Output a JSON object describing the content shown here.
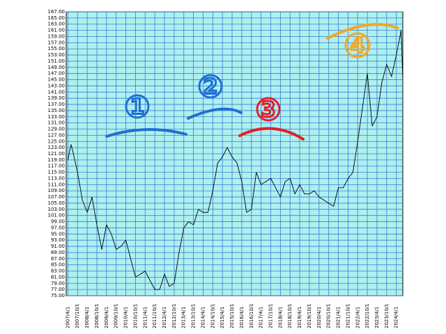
{
  "chart_data": {
    "type": "line",
    "x": [
      "2007/4/1",
      "2007/6/1",
      "2007/7/1",
      "2007/10/1",
      "2008/1/1",
      "2008/4/1",
      "2008/7/1",
      "2008/10/1",
      "2009/1/1",
      "2009/4/1",
      "2009/7/1",
      "2009/10/1",
      "2010/1/1",
      "2010/4/1",
      "2010/7/1",
      "2010/10/1",
      "2011/1/1",
      "2011/4/1",
      "2011/7/1",
      "2011/10/1",
      "2012/1/1",
      "2012/4/1",
      "2012/7/1",
      "2012/10/1",
      "2013/1/1",
      "2013/4/1",
      "2013/7/1",
      "2013/10/1",
      "2014/1/1",
      "2014/4/1",
      "2014/7/1",
      "2014/10/1",
      "2015/1/1",
      "2015/4/1",
      "2015/7/1",
      "2015/10/1",
      "2016/1/1",
      "2016/4/1",
      "2016/7/1",
      "2016/10/1",
      "2017/1/1",
      "2017/4/1",
      "2017/7/1",
      "2017/10/1",
      "2018/1/1",
      "2018/4/1",
      "2018/7/1",
      "2018/10/1",
      "2019/1/1",
      "2019/4/1",
      "2019/7/1",
      "2019/10/1",
      "2020/1/1",
      "2020/4/1",
      "2020/7/1",
      "2020/10/1",
      "2021/1/1",
      "2021/4/1",
      "2021/7/1",
      "2021/10/1",
      "2022/1/1",
      "2022/4/1",
      "2022/7/1",
      "2022/10/1",
      "2023/1/1",
      "2023/4/1",
      "2023/7/1",
      "2023/10/1",
      "2024/1/1",
      "2024/4/1",
      "2024/7/1",
      "2024/8/1"
    ],
    "series": [
      {
        "color": "#000000",
        "values": [
          119,
          124,
          122,
          115,
          106,
          102,
          107,
          98,
          90,
          98,
          95,
          90,
          91,
          93,
          87,
          81,
          82,
          83,
          80,
          77,
          77,
          82,
          78,
          79,
          89,
          97,
          99,
          98,
          103,
          102,
          102,
          109,
          118,
          120,
          123,
          120,
          118,
          112,
          102,
          103,
          115,
          111,
          112,
          113,
          110,
          107,
          112,
          113,
          108,
          111,
          108,
          108,
          109,
          107,
          106,
          105,
          104,
          110,
          110,
          113,
          115,
          125,
          136,
          147,
          130,
          133,
          144,
          150,
          146,
          153,
          161,
          145
        ]
      }
    ],
    "xlim": [
      "2007/3/1",
      "2024/8/1"
    ],
    "xticks": [
      "2007/4/1",
      "2007/10/1",
      "2008/4/1",
      "2008/10/1",
      "2009/4/1",
      "2009/10/1",
      "2010/4/1",
      "2010/10/1",
      "2011/4/1",
      "2011/10/1",
      "2012/4/1",
      "2012/10/1",
      "2013/4/1",
      "2013/10/1",
      "2014/4/1",
      "2014/10/1",
      "2015/4/1",
      "2015/10/1",
      "2016/4/1",
      "2016/10/1",
      "2017/4/1",
      "2017/10/1",
      "2018/4/1",
      "2018/10/1",
      "2019/4/1",
      "2019/10/1",
      "2020/4/1",
      "2020/10/1",
      "2021/4/1",
      "2021/10/1",
      "2022/4/1",
      "2022/10/1",
      "2023/4/1",
      "2023/10/1",
      "2024/4/1"
    ],
    "ylim": [
      75,
      167
    ],
    "yticks": [
      {
        "value": 75,
        "label": "75.00"
      },
      {
        "value": 77,
        "label": "77.00"
      },
      {
        "value": 79,
        "label": "79.00"
      },
      {
        "value": 81,
        "label": "81.00"
      },
      {
        "value": 83,
        "label": "83.00"
      },
      {
        "value": 85,
        "label": "85.00"
      },
      {
        "value": 87,
        "label": "87.00"
      },
      {
        "value": 89,
        "label": "89.00"
      },
      {
        "value": 91,
        "label": "91.00"
      },
      {
        "value": 93,
        "label": "93.00"
      },
      {
        "value": 95,
        "label": "95.00"
      },
      {
        "value": 97,
        "label": "97.00"
      },
      {
        "value": 99,
        "label": "99.00"
      },
      {
        "value": 101,
        "label": "101.00"
      },
      {
        "value": 103,
        "label": "103.00"
      },
      {
        "value": 105,
        "label": "105.00"
      },
      {
        "value": 107,
        "label": "107.00"
      },
      {
        "value": 109,
        "label": "109.00"
      },
      {
        "value": 111,
        "label": "111.00"
      },
      {
        "value": 113,
        "label": "113.00"
      },
      {
        "value": 115,
        "label": "115.00"
      },
      {
        "value": 117,
        "label": "117.00"
      },
      {
        "value": 119,
        "label": "119.00"
      },
      {
        "value": 121,
        "label": "121.00"
      },
      {
        "value": 123,
        "label": "123.00"
      },
      {
        "value": 125,
        "label": "125.00"
      },
      {
        "value": 127,
        "label": "127.00"
      },
      {
        "value": 129,
        "label": "129.00"
      },
      {
        "value": 131,
        "label": "131.00"
      },
      {
        "value": 133,
        "label": "133.00"
      },
      {
        "value": 135,
        "label": "135.00"
      },
      {
        "value": 137,
        "label": "137.00"
      },
      {
        "value": 139,
        "label": "139.00"
      },
      {
        "value": 141,
        "label": "141.00"
      },
      {
        "value": 143,
        "label": "143.00"
      },
      {
        "value": 145,
        "label": "145.00"
      },
      {
        "value": 147,
        "label": "147.00"
      },
      {
        "value": 149,
        "label": "149.00"
      },
      {
        "value": 151,
        "label": "151.00"
      },
      {
        "value": 153,
        "label": "153.00"
      },
      {
        "value": 155,
        "label": "155.00"
      },
      {
        "value": 157,
        "label": "157.00"
      },
      {
        "value": 159,
        "label": "159.00"
      },
      {
        "value": 161,
        "label": "161.00"
      },
      {
        "value": 163,
        "label": "163.00"
      },
      {
        "value": 165,
        "label": "165.00"
      },
      {
        "value": 167,
        "label": "167.00"
      }
    ],
    "grid": true,
    "annotations": [
      {
        "text": "1",
        "color": "#1f6fd6"
      },
      {
        "text": "2",
        "color": "#1f6fd6"
      },
      {
        "text": "3",
        "color": "#e0202a"
      },
      {
        "text": "4",
        "color": "#f5a623"
      }
    ]
  }
}
